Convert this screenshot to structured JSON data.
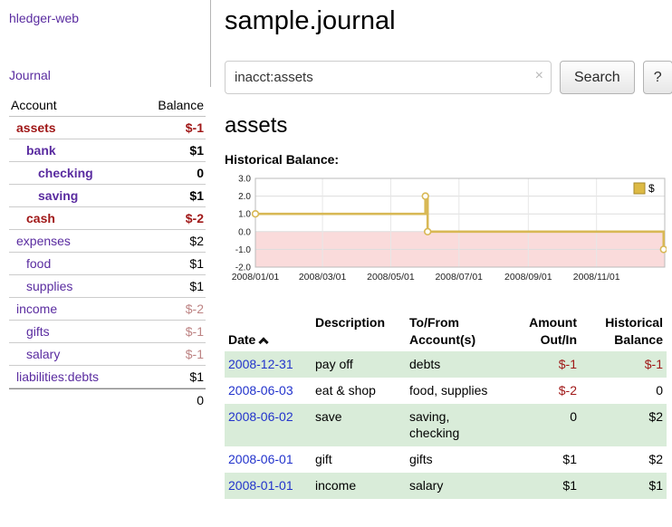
{
  "sidebar": {
    "app_title": "hledger-web",
    "nav": {
      "journal": "Journal"
    },
    "accounts_table": {
      "col_account": "Account",
      "col_balance": "Balance",
      "rows": [
        {
          "name": "assets",
          "balance": "$-1",
          "indent": 0,
          "bold": true,
          "name_negative": true,
          "balance_negative": "strong"
        },
        {
          "name": "bank",
          "balance": "$1",
          "indent": 1,
          "bold": true,
          "name_negative": false,
          "balance_negative": "none"
        },
        {
          "name": "checking",
          "balance": "0",
          "indent": 2,
          "bold": true,
          "name_negative": false,
          "balance_negative": "none"
        },
        {
          "name": "saving",
          "balance": "$1",
          "indent": 2,
          "bold": true,
          "name_negative": false,
          "balance_negative": "none"
        },
        {
          "name": "cash",
          "balance": "$-2",
          "indent": 1,
          "bold": true,
          "name_negative": true,
          "balance_negative": "strong"
        },
        {
          "name": "expenses",
          "balance": "$2",
          "indent": 0,
          "bold": false,
          "name_negative": false,
          "balance_negative": "none"
        },
        {
          "name": "food",
          "balance": "$1",
          "indent": 1,
          "bold": false,
          "name_negative": false,
          "balance_negative": "none"
        },
        {
          "name": "supplies",
          "balance": "$1",
          "indent": 1,
          "bold": false,
          "name_negative": false,
          "balance_negative": "none"
        },
        {
          "name": "income",
          "balance": "$-2",
          "indent": 0,
          "bold": false,
          "name_negative": false,
          "balance_negative": "muted"
        },
        {
          "name": "gifts",
          "balance": "$-1",
          "indent": 1,
          "bold": false,
          "name_negative": false,
          "balance_negative": "muted"
        },
        {
          "name": "salary",
          "balance": "$-1",
          "indent": 1,
          "bold": false,
          "name_negative": false,
          "balance_negative": "muted"
        },
        {
          "name": "liabilities:debts",
          "balance": "$1",
          "indent": 0,
          "bold": false,
          "name_negative": false,
          "balance_negative": "none"
        }
      ],
      "total": "0"
    }
  },
  "main": {
    "title": "sample.journal",
    "search": {
      "value": "inacct:assets",
      "clear_icon": "×",
      "button": "Search",
      "help_button": "?"
    },
    "account_heading": "assets"
  },
  "chart_data": {
    "type": "line",
    "step": true,
    "title": "Historical Balance:",
    "series": [
      {
        "name": "$",
        "points": [
          {
            "date": "2008-01-01",
            "day": 0,
            "value": 1
          },
          {
            "date": "2008-06-01",
            "day": 152,
            "value": 2
          },
          {
            "date": "2008-06-03",
            "day": 154,
            "value": 0
          },
          {
            "date": "2008-12-31",
            "day": 365,
            "value": -1
          }
        ]
      }
    ],
    "ylim": [
      -2,
      3
    ],
    "yticks": [
      3,
      2,
      1,
      0,
      -1,
      -2
    ],
    "ytick_labels": [
      "3.0",
      "2.0",
      "1.0",
      "0.0",
      "-1.0",
      "-2.0"
    ],
    "xticks": [
      {
        "label": "2008/01/01",
        "day": 0
      },
      {
        "label": "2008/03/01",
        "day": 60
      },
      {
        "label": "2008/05/01",
        "day": 121
      },
      {
        "label": "2008/07/01",
        "day": 182
      },
      {
        "label": "2008/09/01",
        "day": 244
      },
      {
        "label": "2008/11/01",
        "day": 305
      }
    ],
    "x_total_days": 366,
    "grid": true,
    "negative_fill": "#fadbdb",
    "line_color": "#d8b855",
    "legend": {
      "label": "$",
      "swatch_color": "#ddba45",
      "position": "top-right"
    }
  },
  "register": {
    "headers": {
      "date": "Date",
      "description": "Description",
      "accounts": "To/From\nAccount(s)",
      "amount": "Amount\nOut/In",
      "balance": "Historical\nBalance"
    },
    "rows": [
      {
        "date": "2008-12-31",
        "description": "pay off",
        "accounts": "debts",
        "amount": "$-1",
        "amount_negative": true,
        "balance": "$-1",
        "balance_negative": true,
        "striped": true
      },
      {
        "date": "2008-06-03",
        "description": "eat & shop",
        "accounts": "food, supplies",
        "amount": "$-2",
        "amount_negative": true,
        "balance": "0",
        "balance_negative": false,
        "striped": false
      },
      {
        "date": "2008-06-02",
        "description": "save",
        "accounts": "saving, checking",
        "amount": "0",
        "amount_negative": false,
        "balance": "$2",
        "balance_negative": false,
        "striped": true
      },
      {
        "date": "2008-06-01",
        "description": "gift",
        "accounts": "gifts",
        "amount": "$1",
        "amount_negative": false,
        "balance": "$2",
        "balance_negative": false,
        "striped": false
      },
      {
        "date": "2008-01-01",
        "description": "income",
        "accounts": "salary",
        "amount": "$1",
        "amount_negative": false,
        "balance": "$1",
        "balance_negative": false,
        "striped": true
      }
    ]
  }
}
